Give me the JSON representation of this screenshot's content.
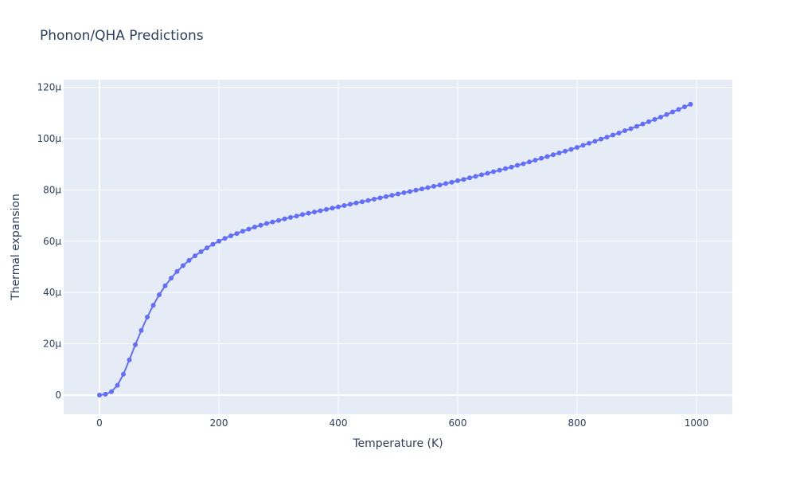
{
  "chart_data": {
    "type": "line",
    "title": "Phonon/QHA Predictions",
    "xlabel": "Temperature (K)",
    "ylabel": "Thermal expansion",
    "xlim": [
      -60,
      1060
    ],
    "ylim": [
      -7.5e-06,
      0.000123
    ],
    "grid": true,
    "x_ticks": [
      0,
      200,
      400,
      600,
      800,
      1000
    ],
    "y_ticks": [
      0,
      2e-05,
      4e-05,
      6e-05,
      8e-05,
      0.0001,
      0.00012
    ],
    "x_tick_labels": [
      "0",
      "200",
      "400",
      "600",
      "800",
      "1000"
    ],
    "y_tick_labels": [
      "0",
      "20μ",
      "40μ",
      "60μ",
      "80μ",
      "100μ",
      "120μ"
    ],
    "color": "#636efa",
    "series": [
      {
        "x": [
          0,
          10,
          20,
          30,
          40,
          50,
          60,
          70,
          80,
          90,
          100,
          110,
          120,
          130,
          140,
          150,
          160,
          170,
          180,
          190,
          200,
          210,
          220,
          230,
          240,
          250,
          260,
          270,
          280,
          290,
          300,
          310,
          320,
          330,
          340,
          350,
          360,
          370,
          380,
          390,
          400,
          410,
          420,
          430,
          440,
          450,
          460,
          470,
          480,
          490,
          500,
          510,
          520,
          530,
          540,
          550,
          560,
          570,
          580,
          590,
          600,
          610,
          620,
          630,
          640,
          650,
          660,
          670,
          680,
          690,
          700,
          710,
          720,
          730,
          740,
          750,
          760,
          770,
          780,
          790,
          800,
          810,
          820,
          830,
          840,
          850,
          860,
          870,
          880,
          890,
          900,
          910,
          920,
          930,
          940,
          950,
          960,
          970,
          980,
          990
        ],
        "y": [
          0,
          3e-07,
          1.3e-06,
          3.8e-06,
          8.1e-06,
          1.37e-05,
          1.96e-05,
          2.52e-05,
          3.04e-05,
          3.5e-05,
          3.91e-05,
          4.26e-05,
          4.56e-05,
          4.82e-05,
          5.05e-05,
          5.25e-05,
          5.43e-05,
          5.59e-05,
          5.74e-05,
          5.88e-05,
          6e-05,
          6.11e-05,
          6.21e-05,
          6.3e-05,
          6.39e-05,
          6.47e-05,
          6.55e-05,
          6.62e-05,
          6.69e-05,
          6.75e-05,
          6.81e-05,
          6.87e-05,
          6.93e-05,
          6.98e-05,
          7.04e-05,
          7.09e-05,
          7.14e-05,
          7.19e-05,
          7.24e-05,
          7.29e-05,
          7.34e-05,
          7.39e-05,
          7.44e-05,
          7.49e-05,
          7.54e-05,
          7.59e-05,
          7.64e-05,
          7.69e-05,
          7.74e-05,
          7.79e-05,
          7.84e-05,
          7.89e-05,
          7.94e-05,
          7.99e-05,
          8.04e-05,
          8.09e-05,
          8.14e-05,
          8.19e-05,
          8.25e-05,
          8.3e-05,
          8.36e-05,
          8.41e-05,
          8.47e-05,
          8.53e-05,
          8.59e-05,
          8.65e-05,
          8.71e-05,
          8.77e-05,
          8.83e-05,
          8.89e-05,
          8.96e-05,
          9.02e-05,
          9.09e-05,
          9.16e-05,
          9.23e-05,
          9.3e-05,
          9.37e-05,
          9.44e-05,
          9.51e-05,
          9.58e-05,
          9.66e-05,
          9.74e-05,
          9.82e-05,
          9.9e-05,
          9.98e-05,
          0.0001006,
          0.0001014,
          0.0001022,
          0.0001031,
          0.0001039,
          0.0001048,
          0.0001057,
          0.0001066,
          0.0001075,
          0.0001084,
          0.0001094,
          0.0001104,
          0.0001114,
          0.0001124,
          0.0001134
        ]
      }
    ]
  }
}
